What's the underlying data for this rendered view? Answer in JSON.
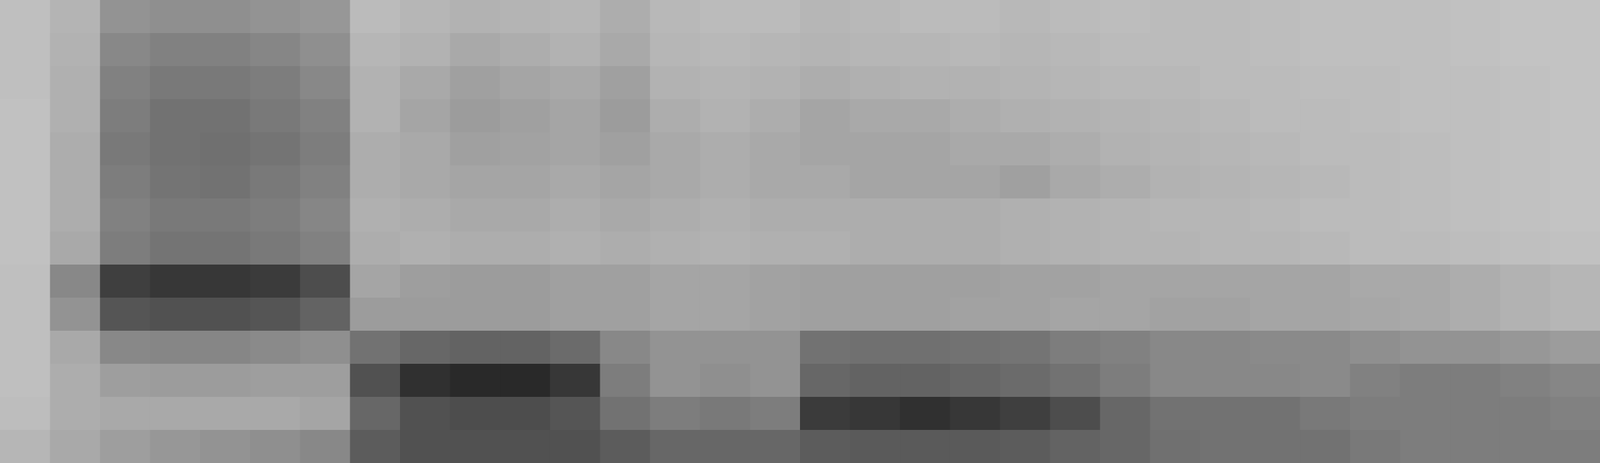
{
  "chart_data": {
    "type": "heatmap",
    "tick_labels": false,
    "cells": [
      [
        20,
        25,
        40,
        42,
        42,
        40,
        38,
        22,
        24,
        26,
        25,
        24,
        28,
        23,
        22,
        22,
        24,
        23,
        22,
        22,
        23,
        22,
        21,
        22,
        22,
        21,
        20,
        20,
        20,
        19,
        18,
        18
      ],
      [
        20,
        26,
        45,
        48,
        48,
        46,
        42,
        24,
        26,
        30,
        28,
        26,
        30,
        24,
        23,
        24,
        25,
        24,
        24,
        23,
        24,
        23,
        22,
        22,
        22,
        21,
        20,
        20,
        20,
        19,
        18,
        18
      ],
      [
        20,
        27,
        48,
        52,
        52,
        50,
        45,
        26,
        30,
        34,
        32,
        30,
        34,
        26,
        25,
        26,
        28,
        27,
        26,
        26,
        25,
        24,
        23,
        23,
        22,
        22,
        21,
        21,
        20,
        20,
        19,
        18
      ],
      [
        19,
        27,
        50,
        55,
        55,
        52,
        48,
        26,
        32,
        36,
        34,
        32,
        36,
        28,
        26,
        28,
        32,
        30,
        30,
        28,
        27,
        26,
        25,
        24,
        23,
        22,
        22,
        21,
        20,
        20,
        19,
        18
      ],
      [
        19,
        28,
        52,
        55,
        56,
        54,
        50,
        28,
        30,
        34,
        33,
        32,
        34,
        30,
        28,
        30,
        32,
        32,
        32,
        30,
        30,
        28,
        26,
        25,
        24,
        23,
        22,
        22,
        21,
        20,
        19,
        18
      ],
      [
        19,
        28,
        50,
        54,
        55,
        52,
        48,
        28,
        30,
        32,
        32,
        30,
        32,
        30,
        28,
        30,
        30,
        32,
        32,
        32,
        34,
        30,
        28,
        26,
        25,
        24,
        23,
        22,
        21,
        20,
        19,
        18
      ],
      [
        19,
        28,
        48,
        52,
        52,
        50,
        46,
        27,
        28,
        30,
        30,
        28,
        30,
        28,
        27,
        28,
        28,
        28,
        28,
        28,
        27,
        26,
        25,
        24,
        24,
        23,
        22,
        22,
        21,
        20,
        19,
        18
      ],
      [
        19,
        30,
        50,
        54,
        54,
        52,
        48,
        28,
        27,
        28,
        28,
        27,
        28,
        27,
        26,
        27,
        27,
        28,
        28,
        28,
        27,
        26,
        25,
        25,
        24,
        24,
        23,
        22,
        22,
        21,
        20,
        19
      ],
      [
        20,
        45,
        78,
        82,
        82,
        80,
        72,
        32,
        35,
        36,
        36,
        34,
        34,
        32,
        32,
        33,
        34,
        34,
        34,
        34,
        33,
        33,
        32,
        32,
        32,
        32,
        32,
        30,
        30,
        28,
        26,
        24
      ],
      [
        20,
        40,
        68,
        70,
        70,
        68,
        62,
        36,
        36,
        36,
        36,
        34,
        34,
        32,
        32,
        33,
        34,
        34,
        34,
        33,
        33,
        32,
        32,
        33,
        33,
        32,
        32,
        31,
        30,
        28,
        26,
        24
      ],
      [
        20,
        30,
        45,
        46,
        46,
        44,
        42,
        55,
        60,
        62,
        62,
        58,
        45,
        40,
        40,
        40,
        55,
        56,
        56,
        55,
        54,
        50,
        48,
        45,
        45,
        44,
        44,
        42,
        40,
        40,
        38,
        36
      ],
      [
        20,
        28,
        35,
        36,
        36,
        35,
        35,
        70,
        85,
        88,
        88,
        82,
        50,
        40,
        42,
        40,
        60,
        62,
        62,
        60,
        58,
        55,
        50,
        45,
        45,
        45,
        44,
        48,
        50,
        50,
        48,
        46
      ],
      [
        21,
        28,
        30,
        30,
        30,
        30,
        32,
        60,
        70,
        72,
        72,
        68,
        55,
        50,
        52,
        50,
        80,
        82,
        85,
        82,
        78,
        72,
        60,
        55,
        55,
        55,
        52,
        50,
        50,
        50,
        50,
        48
      ],
      [
        24,
        30,
        35,
        38,
        40,
        42,
        45,
        65,
        70,
        70,
        70,
        70,
        65,
        60,
        60,
        60,
        65,
        66,
        66,
        66,
        65,
        62,
        60,
        56,
        55,
        55,
        55,
        52,
        50,
        50,
        50,
        50
      ]
    ]
  }
}
